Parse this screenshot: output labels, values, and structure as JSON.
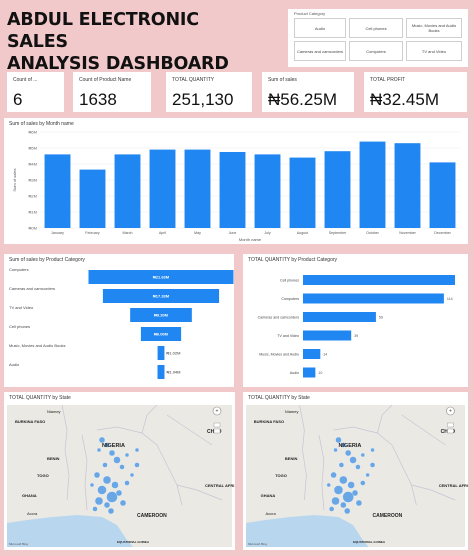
{
  "header": {
    "title_line1": "ABDUL ELECTRONIC SALES",
    "title_line2": "ANALYSIS DASHBOARD"
  },
  "slicer": {
    "title": "Product Category",
    "options": [
      "Audio",
      "Cell phones",
      "Music, Movies and Audio Books",
      "Cameras and camcorders",
      "Computers",
      "TV and Video"
    ]
  },
  "kpis": [
    {
      "label": "Count of ...",
      "value": "6"
    },
    {
      "label": "Count of Product Name",
      "value": "1638"
    },
    {
      "label": "TOTAL QUANTITY",
      "value": "251,130"
    },
    {
      "label": "Sum of sales",
      "value": "₦56.25M"
    },
    {
      "label": "TOTAL PROFIT",
      "value": "₦32.45M"
    }
  ],
  "chart_data": [
    {
      "type": "bar",
      "title": "Sum of sales by Month name",
      "xlabel": "Month name",
      "ylabel": "Sum of sales",
      "categories": [
        "January",
        "February",
        "March",
        "April",
        "May",
        "June",
        "July",
        "August",
        "September",
        "October",
        "November",
        "December"
      ],
      "values": [
        4.6,
        3.65,
        4.6,
        4.9,
        4.9,
        4.75,
        4.6,
        4.4,
        4.8,
        5.4,
        5.3,
        4.1
      ],
      "yticks": [
        "₦6M",
        "₦5M",
        "₦4M",
        "₦3M",
        "₦2M",
        "₦1M",
        "₦0M"
      ],
      "ylim": [
        0,
        6
      ],
      "color": "#1f86f2"
    },
    {
      "type": "bar",
      "orientation": "horizontal-funnel",
      "title": "Sum of sales by Product Category",
      "categories": [
        "Computers",
        "Cameras and camcorders",
        "TV and Video",
        "Cell phones",
        "Music, Movies and Audio Books",
        "Audio"
      ],
      "values": [
        21.63,
        17.33,
        9.2,
        6.0,
        1.02,
        1.04
      ],
      "data_labels": [
        "₦21.63M",
        "₦17.33M",
        "₦9.20M",
        "₦6.00M",
        "₦1.02M",
        "₦1.04M"
      ],
      "color": "#1f86f2"
    },
    {
      "type": "bar",
      "orientation": "horizontal",
      "title": "TOTAL QUANTITY by Product Category",
      "categories": [
        "Cell phones",
        "Computers",
        "Cameras and camcorders",
        "TV and Video",
        "Music, Movies and Audio",
        "Audio"
      ],
      "values": [
        123,
        114,
        59,
        39,
        14,
        10
      ],
      "data_labels": [
        "",
        "114",
        "59",
        "39",
        "14",
        "10"
      ],
      "color": "#1f86f2"
    }
  ],
  "maps": [
    {
      "title": "TOTAL QUANTITY by State",
      "labels": [
        "Niamey",
        "BURKINA FASO",
        "BENIN",
        "NIGERIA",
        "TOGO",
        "GHANA",
        "Accra",
        "CAMEROON",
        "CHAD",
        "EQUATORIAL GUINEA",
        "CENTRAL AFRI REPU"
      ],
      "attribution": "Microsoft Bing"
    },
    {
      "title": "TOTAL QUANTITY by State",
      "labels": [
        "Niamey",
        "BURKINA FASO",
        "BENIN",
        "NIGERIA",
        "TOGO",
        "GHANA",
        "Accra",
        "CAMEROON",
        "CHAD",
        "EQUATORIAL GUINEA",
        "CENTRAL AFRI REPU"
      ],
      "attribution": "Microsoft Bing"
    }
  ],
  "colors": {
    "background": "#f1c9cb",
    "accent": "#1f86f2",
    "bubble": "#3d8fe6"
  }
}
